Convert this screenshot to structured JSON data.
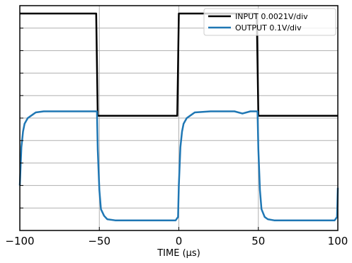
{
  "chart_data": {
    "type": "line",
    "title": "",
    "xlabel": "TIME (µs)",
    "ylabel": "",
    "xlim": [
      -100,
      100
    ],
    "ylim": [
      0,
      10
    ],
    "x_ticks": [
      -100,
      -50,
      0,
      50,
      100
    ],
    "y_gridlines": [
      0,
      1,
      2,
      3,
      4,
      5,
      6,
      7,
      8,
      9,
      10
    ],
    "grid": true,
    "legend_position": "top-right",
    "series": [
      {
        "name": "INPUT 0.0021V/div",
        "color": "#000000",
        "x": [
          -100,
          -52,
          -51,
          -1,
          0,
          49,
          50,
          100
        ],
        "y": [
          9.65,
          9.65,
          5.1,
          5.1,
          9.65,
          9.65,
          5.1,
          5.1
        ]
      },
      {
        "name": "OUTPUT 0.1V/div",
        "color": "#1f77b4",
        "x": [
          -100,
          -99,
          -98,
          -97,
          -95,
          -92,
          -90,
          -85,
          -70,
          -55,
          -51.5,
          -51,
          -50,
          -49,
          -47,
          -45,
          -40,
          -20,
          -2,
          -0.5,
          0,
          1,
          2,
          3,
          5,
          8,
          10,
          20,
          35,
          40,
          45,
          49.5,
          50,
          51,
          52,
          54,
          56,
          60,
          80,
          98,
          99.5,
          100
        ],
        "y": [
          2.0,
          3.7,
          4.4,
          4.75,
          5.0,
          5.15,
          5.25,
          5.3,
          5.3,
          5.3,
          5.3,
          3.6,
          1.8,
          0.95,
          0.65,
          0.5,
          0.45,
          0.45,
          0.45,
          0.6,
          2.0,
          3.7,
          4.4,
          4.75,
          5.0,
          5.15,
          5.25,
          5.3,
          5.3,
          5.2,
          5.3,
          5.3,
          3.6,
          1.8,
          0.95,
          0.6,
          0.5,
          0.45,
          0.45,
          0.45,
          0.6,
          1.9
        ]
      }
    ]
  }
}
